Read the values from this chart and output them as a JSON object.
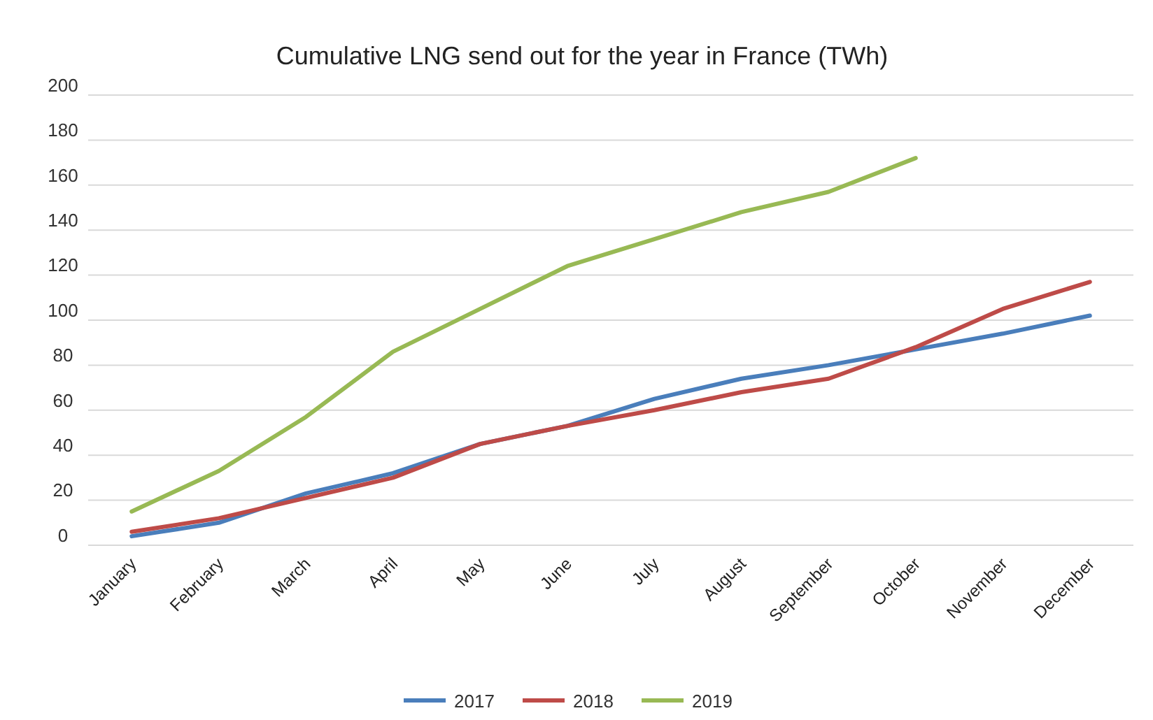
{
  "chart_data": {
    "type": "line",
    "title": "Cumulative LNG send out for the year in France (TWh)",
    "categories": [
      "January",
      "February",
      "March",
      "April",
      "May",
      "June",
      "July",
      "August",
      "September",
      "October",
      "November",
      "December"
    ],
    "series": [
      {
        "name": "2017",
        "color": "#4a7ebb",
        "values": [
          4,
          10,
          23,
          32,
          45,
          53,
          65,
          74,
          80,
          87,
          94,
          102
        ]
      },
      {
        "name": "2018",
        "color": "#be4b48",
        "values": [
          6,
          12,
          21,
          30,
          45,
          53,
          60,
          68,
          74,
          88,
          105,
          117
        ]
      },
      {
        "name": "2019",
        "color": "#98b954",
        "values": [
          15,
          33,
          57,
          86,
          105,
          124,
          136,
          148,
          157,
          172,
          null,
          null
        ]
      }
    ],
    "ylim": [
      0,
      200
    ],
    "yticks": [
      0,
      20,
      40,
      60,
      80,
      100,
      120,
      140,
      160,
      180,
      200
    ],
    "grid": "y",
    "legend": "bottom",
    "marker": "none",
    "line_style": "solid"
  }
}
